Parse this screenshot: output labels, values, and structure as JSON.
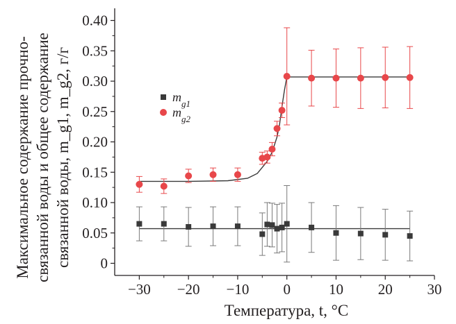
{
  "chart_data": {
    "type": "scatter",
    "xlabel": "Температура, t, °С",
    "ylabel_lines": [
      "Максимальное содержание прочно-",
      "связанной воды и общее содержание",
      "связанной воды, m_g1, m_g2, г/г"
    ],
    "xlim": [
      -35,
      30
    ],
    "ylim": [
      -0.02,
      0.42
    ],
    "xticks": [
      -30,
      -20,
      -10,
      0,
      10,
      20,
      30
    ],
    "yticks": [
      0,
      0.05,
      0.1,
      0.15,
      0.2,
      0.25,
      0.3,
      0.35,
      0.4
    ],
    "xtick_labels": [
      "−30",
      "−20",
      "−10",
      "0",
      "10",
      "20",
      "30"
    ],
    "ytick_labels": [
      "0",
      "0.05",
      "0.10",
      "0.15",
      "0.20",
      "0.25",
      "0.30",
      "0.35",
      "0.40"
    ],
    "legend_position": "upper-left",
    "series": [
      {
        "name": "m_g1",
        "marker": "square",
        "color": "#3a3a3a",
        "x": [
          -30,
          -25,
          -20,
          -15,
          -10,
          -5,
          -4,
          -3,
          -2,
          -1,
          0,
          5,
          10,
          15,
          20,
          25
        ],
        "y": [
          0.065,
          0.065,
          0.06,
          0.061,
          0.061,
          0.048,
          0.064,
          0.063,
          0.057,
          0.059,
          0.065,
          0.059,
          0.05,
          0.049,
          0.047,
          0.045
        ],
        "err": [
          0.028,
          0.028,
          0.032,
          0.032,
          0.032,
          0.035,
          0.036,
          0.036,
          0.04,
          0.04,
          0.063,
          0.041,
          0.045,
          0.043,
          0.042,
          0.041
        ]
      },
      {
        "name": "m_g2",
        "marker": "circle",
        "color": "#e8474a",
        "x": [
          -30,
          -25,
          -20,
          -15,
          -10,
          -5,
          -4,
          -3,
          -2,
          -1,
          0,
          5,
          10,
          15,
          20,
          25
        ],
        "y": [
          0.13,
          0.127,
          0.144,
          0.146,
          0.146,
          0.173,
          0.175,
          0.188,
          0.222,
          0.252,
          0.308,
          0.305,
          0.305,
          0.305,
          0.306,
          0.306
        ],
        "err": [
          0.013,
          0.012,
          0.011,
          0.011,
          0.011,
          0.01,
          0.01,
          0.011,
          0.012,
          0.012,
          0.08,
          0.046,
          0.048,
          0.05,
          0.05,
          0.051
        ]
      }
    ],
    "fit_lines": [
      {
        "series": "m_g1",
        "color": "#3a3a3a",
        "x": [
          -30,
          25
        ],
        "y": [
          0.057,
          0.057
        ]
      },
      {
        "series": "m_g2",
        "color": "#3a3a3a",
        "x": [
          -30,
          -20,
          -12,
          -8,
          -6,
          -4,
          -3,
          -2,
          -1.5,
          -1,
          -0.5,
          0,
          5,
          25
        ],
        "y": [
          0.135,
          0.135,
          0.136,
          0.14,
          0.148,
          0.168,
          0.183,
          0.208,
          0.228,
          0.258,
          0.285,
          0.307,
          0.307,
          0.307
        ]
      }
    ]
  }
}
